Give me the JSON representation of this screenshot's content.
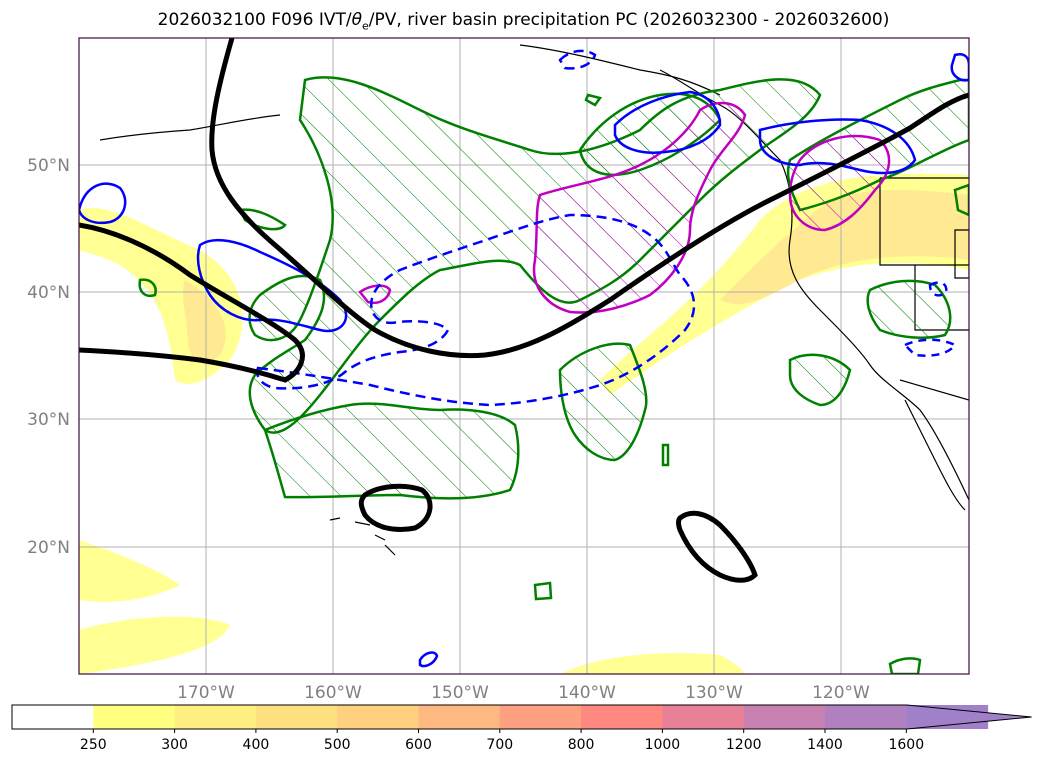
{
  "title": {
    "prefix": "2026032100 F096 IVT/",
    "theta": "θ",
    "theta_sub": "e",
    "suffix": "/PV, river basin precipitation PC (2026032300 - 2026032600)"
  },
  "map": {
    "lat_ticks": [
      "50°N",
      "40°N",
      "30°N",
      "20°N"
    ],
    "lon_ticks": [
      "170°W",
      "160°W",
      "150°W",
      "140°W",
      "130°W",
      "120°W"
    ],
    "colors": {
      "pv_contour": "#000000",
      "theta_e_contour": "#0000ff",
      "precip_pc": "#008000",
      "ivt_contour": "#c000c0",
      "coastline": "#000000",
      "grid": "#b0b0b0",
      "frame": "#3a0a3a"
    }
  },
  "colorbar": {
    "levels": [
      "250",
      "300",
      "400",
      "500",
      "600",
      "700",
      "800",
      "1000",
      "1200",
      "1400",
      "1600"
    ],
    "colors": [
      "#ffffff",
      "#ffff80",
      "#ffef80",
      "#ffe080",
      "#ffd080",
      "#ffb880",
      "#ffa080",
      "#ff8880",
      "#e88098",
      "#c880b0",
      "#b080c0",
      "#a080c8"
    ],
    "extend": "max"
  }
}
